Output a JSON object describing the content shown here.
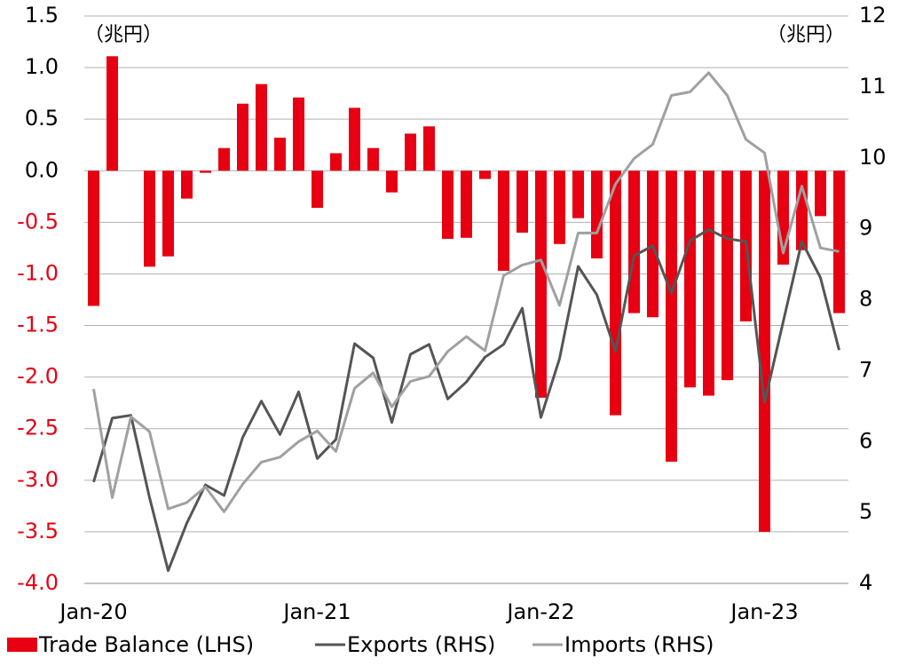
{
  "chart_data": {
    "type": "bar_line",
    "annotations": [
      "（兆円）",
      "（兆円）"
    ],
    "categories": [
      "Jan-20",
      null,
      null,
      null,
      null,
      null,
      null,
      null,
      null,
      null,
      null,
      null,
      "Jan-21",
      null,
      null,
      null,
      null,
      null,
      null,
      null,
      null,
      null,
      null,
      null,
      "Jan-22",
      null,
      null,
      null,
      null,
      null,
      null,
      null,
      null,
      null,
      null,
      null,
      "Jan-23",
      null,
      null,
      null,
      null
    ],
    "series": [
      {
        "name": "Trade Balance (LHS)",
        "type": "bar",
        "color": "#e60012",
        "values": [
          -1.31,
          1.11,
          0.0,
          -0.93,
          -0.83,
          -0.27,
          -0.02,
          0.22,
          0.65,
          0.84,
          0.32,
          0.71,
          -0.36,
          0.17,
          0.61,
          0.22,
          -0.21,
          0.36,
          0.43,
          -0.66,
          -0.65,
          -0.08,
          -0.97,
          -0.6,
          -2.2,
          -0.71,
          -0.46,
          -0.85,
          -2.37,
          -1.38,
          -1.42,
          -2.82,
          -2.1,
          -2.18,
          -2.03,
          -1.46,
          -3.5,
          -0.91,
          -0.77,
          -0.44,
          -1.38
        ]
      },
      {
        "name": "Exports (RHS)",
        "type": "line",
        "axis": "y2",
        "color": "#555555",
        "values": [
          5.43,
          6.33,
          6.37,
          5.21,
          4.18,
          4.85,
          5.39,
          5.24,
          6.06,
          6.57,
          6.1,
          6.7,
          5.76,
          6.03,
          7.38,
          7.18,
          6.27,
          7.23,
          7.37,
          6.6,
          6.84,
          7.19,
          7.37,
          7.88,
          6.34,
          7.17,
          8.47,
          8.07,
          7.27,
          8.62,
          8.76,
          8.09,
          8.83,
          8.99,
          8.86,
          8.82,
          6.55,
          7.69,
          8.82,
          8.31,
          7.29
        ]
      },
      {
        "name": "Imports (RHS)",
        "type": "line",
        "axis": "y2",
        "color": "#a0a0a0",
        "values": [
          6.74,
          5.21,
          6.35,
          6.14,
          5.05,
          5.14,
          5.36,
          5.01,
          5.4,
          5.71,
          5.78,
          6.0,
          6.15,
          5.86,
          6.75,
          6.97,
          6.49,
          6.85,
          6.92,
          7.27,
          7.48,
          7.28,
          8.34,
          8.49,
          8.56,
          7.92,
          8.94,
          8.94,
          9.63,
          9.99,
          10.19,
          10.88,
          10.93,
          11.2,
          10.88,
          10.26,
          10.07,
          8.66,
          9.6,
          8.73,
          8.68
        ]
      }
    ],
    "ylim": [
      -4.0,
      1.5
    ],
    "yticks": [
      1.5,
      {
        "value": 1.0,
        "label": "1.0"
      },
      0.5,
      {
        "value": 0.0,
        "label": "0.0"
      },
      -0.5,
      {
        "value": -1.0,
        "label": "-1.0"
      },
      -1.5,
      {
        "value": -2.0,
        "label": "-2.0"
      },
      -2.5,
      {
        "value": -3.0,
        "label": "-3.0"
      },
      -3.5,
      {
        "value": -4.0,
        "label": "-4.0"
      }
    ],
    "y2lim": [
      4,
      12
    ],
    "y2ticks": [
      12,
      11,
      10,
      9,
      8,
      7,
      6,
      5,
      4
    ],
    "negative_tick_color": "#e60012",
    "grid": true,
    "legend": "bottom"
  }
}
